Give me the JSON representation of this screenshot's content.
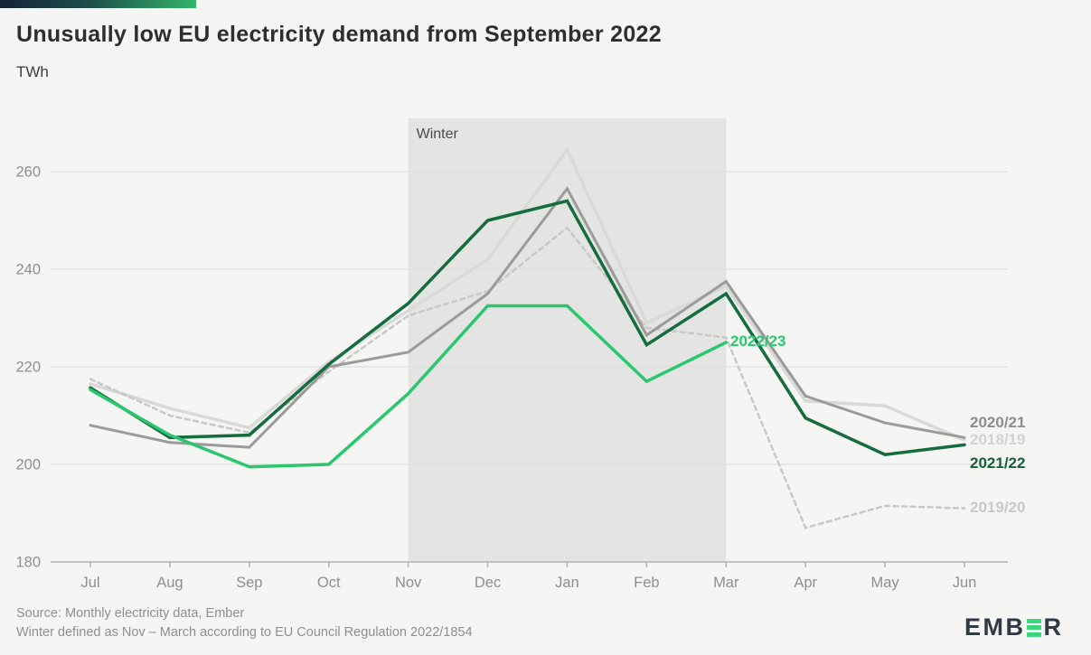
{
  "header": {
    "title": "Unusually low EU electricity demand from September 2022",
    "unit": "TWh"
  },
  "chart_data": {
    "type": "line",
    "title": "Unusually low EU electricity demand from September 2022",
    "ylabel": "TWh",
    "xlabel": "",
    "categories": [
      "Jul",
      "Aug",
      "Sep",
      "Oct",
      "Nov",
      "Dec",
      "Jan",
      "Feb",
      "Mar",
      "Apr",
      "May",
      "Jun"
    ],
    "yticks": [
      180,
      200,
      220,
      240,
      260
    ],
    "ylim": [
      180,
      268
    ],
    "grid": "horizontal",
    "band": {
      "label": "Winter",
      "from": "Nov",
      "to": "Mar",
      "color": "#e4e4e3"
    },
    "colors": {
      "grid": "#dedddc",
      "axis": "#b3b2b1",
      "tick_text": "#8f8f8e",
      "band_label_text": "#4a4a4a"
    },
    "series": [
      {
        "name": "2018/19",
        "color": "#d9d9d8",
        "label_color": "#d2d2d1",
        "style": "solid",
        "values": [
          216.5,
          211.5,
          207.5,
          221,
          231.5,
          242,
          264.5,
          229,
          236.5,
          213,
          212,
          205
        ]
      },
      {
        "name": "2019/20",
        "color": "#c8c8c7",
        "label_color": "#c9c9c8",
        "style": "dashed",
        "values": [
          217.5,
          210,
          206.5,
          219,
          230.5,
          235.5,
          248.5,
          228,
          226,
          187,
          191.5,
          191
        ]
      },
      {
        "name": "2020/21",
        "color": "#9b9b9a",
        "label_color": "#8d8d8d",
        "style": "solid",
        "values": [
          208,
          204.5,
          203.5,
          220,
          223,
          235,
          256.5,
          226.5,
          237.5,
          214,
          208.5,
          205.5
        ]
      },
      {
        "name": "2021/22",
        "color": "#156c3c",
        "label_color": "#156036",
        "style": "solid",
        "values": [
          215.7,
          205.5,
          206,
          220.5,
          233,
          250,
          254,
          224.5,
          235,
          209.5,
          202,
          204
        ]
      },
      {
        "name": "2022/23",
        "color": "#2bc76e",
        "label_color": "#2bc76e",
        "style": "solid",
        "values": [
          215.3,
          206,
          199.5,
          200,
          214.5,
          232.5,
          232.5,
          217,
          225,
          null,
          null,
          null
        ]
      }
    ],
    "legend_position": "line-end-labels"
  },
  "footer": {
    "source_line1": "Source: Monthly electricity data, Ember",
    "source_line2": "Winter defined as Nov – March according to EU Council Regulation 2022/1854",
    "logo_part1": "EMB",
    "logo_part2": "R"
  }
}
